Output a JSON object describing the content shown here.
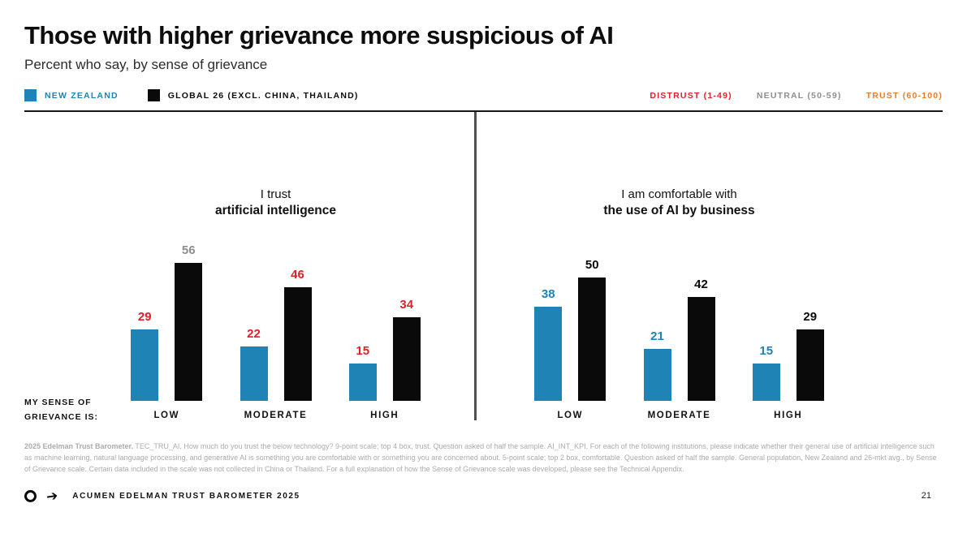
{
  "page": {
    "title": "Those with higher grievance more suspicious of AI",
    "subtitle": "Percent who say, by sense of grievance",
    "page_number": "21"
  },
  "colors": {
    "nz_blue": "#1f83b6",
    "bar_black": "#0a0a0a",
    "distrust_red": "#e11f26",
    "neutral_gray": "#8e8e8e",
    "trust_orange": "#ee7c23"
  },
  "legend": {
    "series": [
      {
        "label": "NEW ZEALAND",
        "color_key": "nz_blue"
      },
      {
        "label": "GLOBAL 26 (EXCL. CHINA, THAILAND)",
        "color_key": "bar_black"
      }
    ],
    "scale": [
      {
        "label": "DISTRUST (1-49)",
        "color_key": "distrust_red"
      },
      {
        "label": "NEUTRAL (50-59)",
        "color_key": "neutral_gray"
      },
      {
        "label": "TRUST (60-100)",
        "color_key": "trust_orange"
      }
    ]
  },
  "axis": {
    "label_line1": "MY SENSE OF",
    "label_line2": "GRIEVANCE IS:"
  },
  "chart_data": {
    "type": "bar",
    "categories": [
      "LOW",
      "MODERATE",
      "HIGH"
    ],
    "ylim": [
      0,
      60
    ],
    "legend_position": "top-left",
    "panels": [
      {
        "title_regular": "I trust",
        "title_bold": "artificial intelligence",
        "series": [
          {
            "name": "NEW ZEALAND",
            "color_key": "nz_blue",
            "values": [
              29,
              22,
              15
            ],
            "value_label_colors": [
              "distrust_red",
              "distrust_red",
              "distrust_red"
            ]
          },
          {
            "name": "GLOBAL 26 (EXCL. CHINA, THAILAND)",
            "color_key": "bar_black",
            "values": [
              56,
              46,
              34
            ],
            "value_label_colors": [
              "neutral_gray",
              "distrust_red",
              "distrust_red"
            ]
          }
        ]
      },
      {
        "title_regular": "I am comfortable with",
        "title_bold": "the use of AI by business",
        "series": [
          {
            "name": "NEW ZEALAND",
            "color_key": "nz_blue",
            "values": [
              38,
              21,
              15
            ],
            "value_label_colors": [
              "nz_blue",
              "nz_blue",
              "nz_blue"
            ]
          },
          {
            "name": "GLOBAL 26 (EXCL. CHINA, THAILAND)",
            "color_key": "bar_black",
            "values": [
              50,
              42,
              29
            ],
            "value_label_colors": [
              "bar_black",
              "bar_black",
              "bar_black"
            ]
          }
        ]
      }
    ]
  },
  "footnote": {
    "bold_lead": "2025 Edelman Trust Barometer.",
    "text": "TEC_TRU_AI. How much do you trust the below technology? 9-point scale; top 4 box, trust. Question asked of half the sample. AI_INT_KPI. For each of the following institutions, please indicate whether their general use of artificial intelligence such as machine learning, natural language processing, and generative AI is something you are comfortable with or something you are concerned about. 5-point scale; top 2 box, comfortable. Question asked of half the sample. General population, New Zealand and 26-mkt avg., by Sense of Grievance scale. Certain data included in the scale was not collected in China or Thailand. For a full explanation of how the Sense of Grievance scale was developed, please see the Technical Appendix."
  },
  "footer": {
    "brand": "ACUMEN EDELMAN TRUST BAROMETER 2025"
  }
}
